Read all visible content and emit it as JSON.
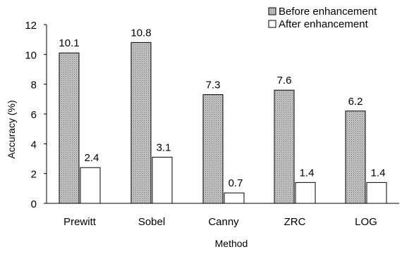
{
  "chart_data": {
    "type": "bar",
    "title": "",
    "xlabel": "Method",
    "ylabel": "Accuracy (%)",
    "ylim": [
      0,
      12
    ],
    "yticks": [
      0,
      2,
      4,
      6,
      8,
      10,
      12
    ],
    "categories": [
      "Prewitt",
      "Sobel",
      "Canny",
      "ZRC",
      "LOG"
    ],
    "series": [
      {
        "name": "Before enhancement",
        "values": [
          10.1,
          10.8,
          7.3,
          7.6,
          6.2
        ],
        "labels": [
          "10.1",
          "10.8",
          "7.3",
          "7.6",
          "6.2"
        ],
        "fill": "dotted-gray"
      },
      {
        "name": "After enhancement",
        "values": [
          2.4,
          3.1,
          0.7,
          1.4,
          1.4
        ],
        "labels": [
          "2.4",
          "3.1",
          "0.7",
          "1.4",
          "1.4"
        ],
        "fill": "white"
      }
    ],
    "legend_position": "top-right",
    "grid": false
  }
}
